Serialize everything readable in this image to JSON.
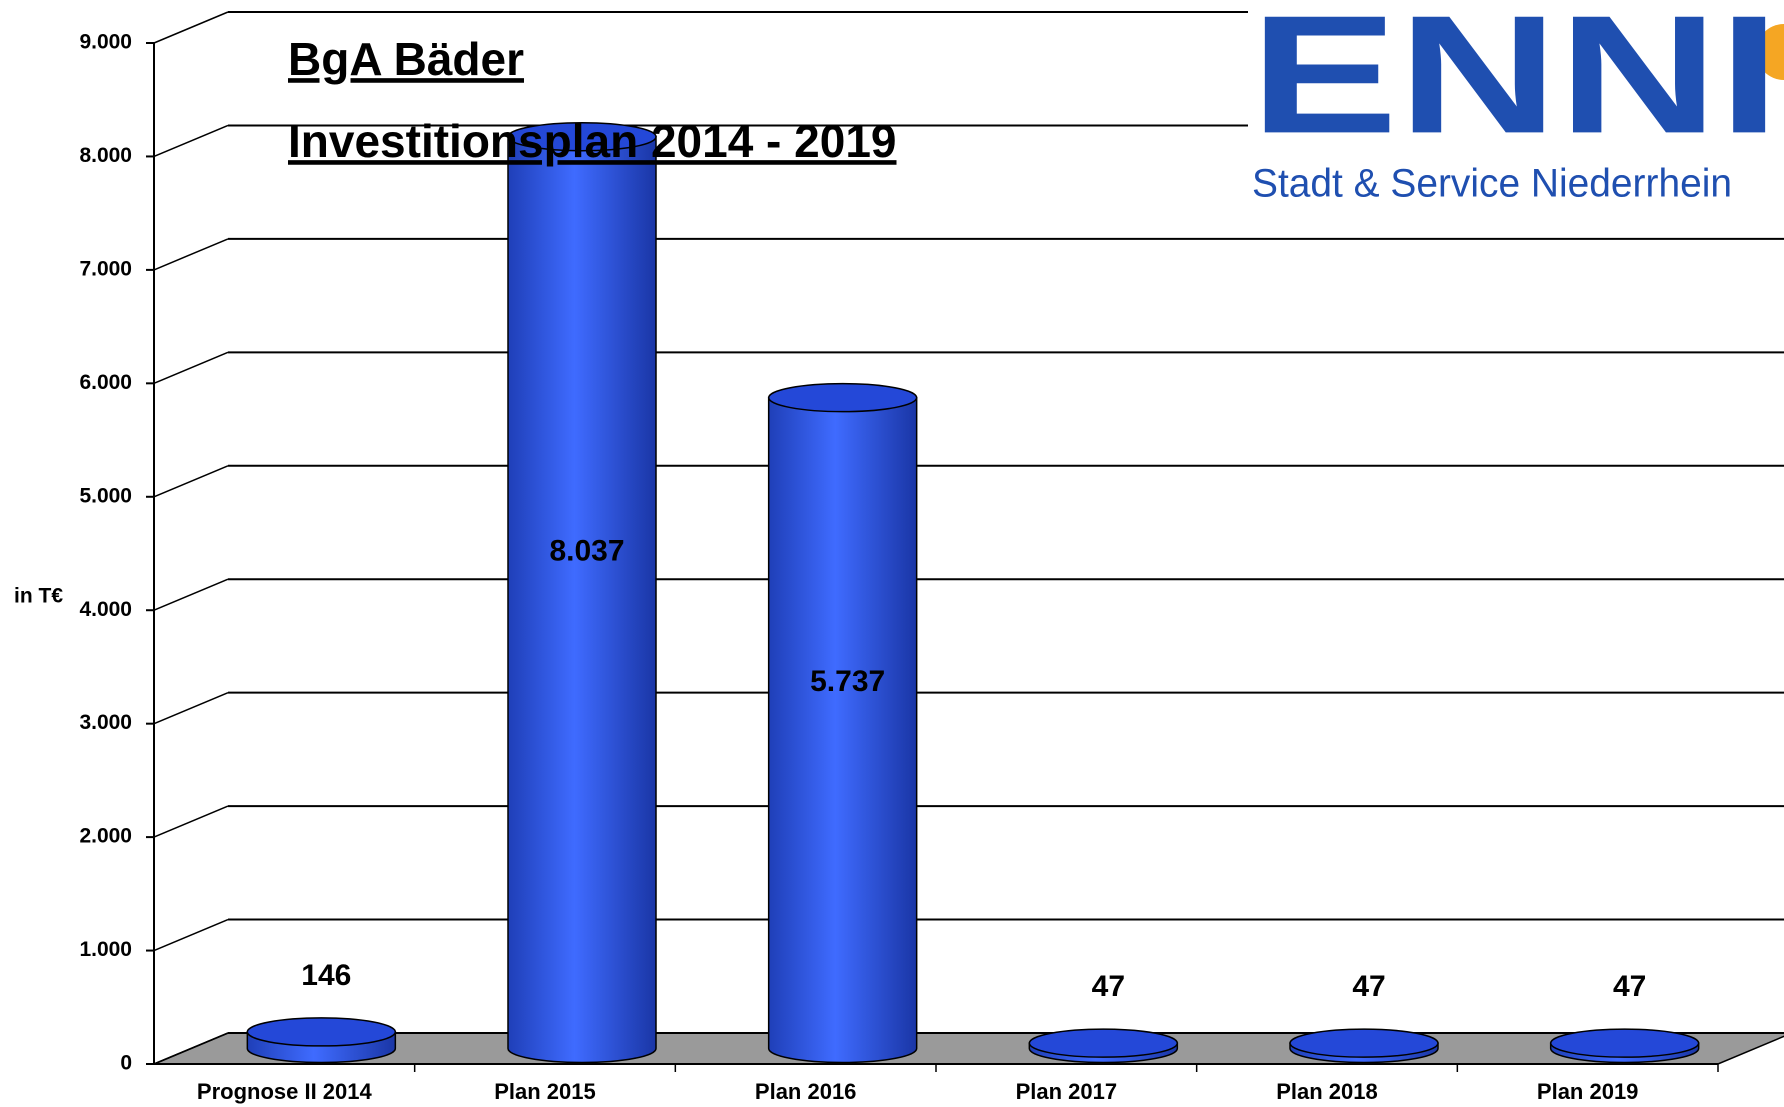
{
  "chart_data": {
    "type": "bar3d",
    "title": "BgA Bäder",
    "subtitle": "Investitionsplan 2014 - 2019",
    "y_label": "in T€",
    "logo": {
      "name": "ENNI",
      "tagline": "Stadt & Service Niederrhein"
    },
    "categories": [
      "Prognose II 2014",
      "Plan 2015",
      "Plan 2016",
      "Plan 2017",
      "Plan 2018",
      "Plan 2019"
    ],
    "values": [
      146,
      8037,
      5737,
      47,
      47,
      47
    ],
    "value_labels": [
      "146",
      "8.037",
      "5.737",
      "47",
      "47",
      "47"
    ],
    "color": "#2f5cf0",
    "ylim": [
      0,
      9000
    ],
    "yticks": [
      0,
      {
        "value": 1000,
        "label": "1.000"
      },
      {
        "value": 2000,
        "label": "2.000"
      },
      {
        "value": 3000,
        "label": "3.000"
      },
      {
        "value": 4000,
        "label": "4.000"
      },
      {
        "value": 5000,
        "label": "5.000"
      },
      {
        "value": 6000,
        "label": "6.000"
      },
      {
        "value": 7000,
        "label": "7.000"
      },
      {
        "value": 8000,
        "label": "8.000"
      },
      {
        "value": 9000,
        "label": "9.000"
      }
    ],
    "grid": true
  }
}
